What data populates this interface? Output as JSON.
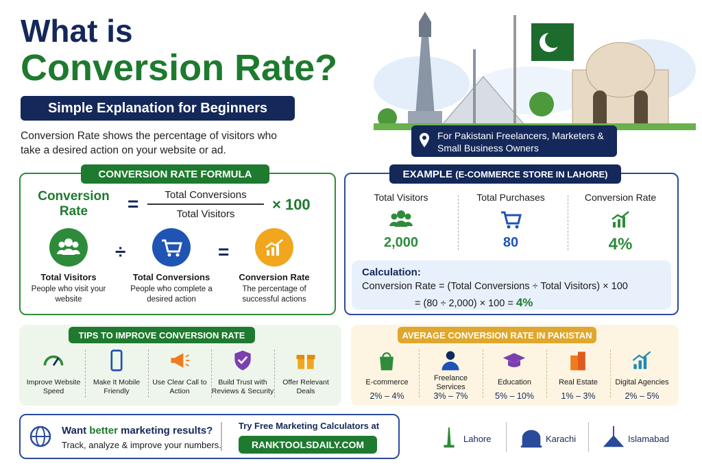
{
  "header": {
    "title_line1": "What is",
    "title_line2": "Conversion Rate?",
    "subtitle": "Simple Explanation for Beginners",
    "description": "Conversion Rate shows the percentage of visitors who take a desired action on your website or ad.",
    "audience": "For Pakistani Freelancers, Marketers & Small Business Owners"
  },
  "formula": {
    "heading": "CONVERSION RATE FORMULA",
    "lhs": "Conversion Rate",
    "equals": "=",
    "numerator": "Total Conversions",
    "denominator": "Total Visitors",
    "multiplier": "× 100",
    "operators": [
      "÷",
      "="
    ],
    "items": [
      {
        "label": "Total Visitors",
        "desc": "People who visit your website"
      },
      {
        "label": "Total Conversions",
        "desc": "People who complete a desired action"
      },
      {
        "label": "Conversion Rate",
        "desc": "The percentage of successful actions"
      }
    ]
  },
  "example": {
    "heading": "EXAMPLE",
    "heading_note": "(E-COMMERCE STORE IN LAHORE)",
    "stats": [
      {
        "label": "Total Visitors",
        "value": "2,000"
      },
      {
        "label": "Total Purchases",
        "value": "80"
      },
      {
        "label": "Conversion Rate",
        "value": "4%"
      }
    ],
    "calculation": {
      "title": "Calculation:",
      "line1": "Conversion Rate = (Total Conversions ÷ Total Visitors) × 100",
      "line2": "= (80 ÷ 2,000) × 100 =",
      "result": "4%"
    }
  },
  "tips": {
    "heading": "TIPS TO IMPROVE CONVERSION RATE",
    "items": [
      "Improve Website Speed",
      "Make It Mobile Friendly",
      "Use Clear Call to Action",
      "Build Trust with Reviews & Security",
      "Offer Relevant Deals"
    ]
  },
  "averages": {
    "heading": "AVERAGE CONVERSION RATE IN PAKISTAN",
    "items": [
      {
        "sector": "E-commerce",
        "range": "2% – 4%"
      },
      {
        "sector": "Freelance Services",
        "range": "3% – 7%"
      },
      {
        "sector": "Education",
        "range": "5% – 10%"
      },
      {
        "sector": "Real Estate",
        "range": "1% – 3%"
      },
      {
        "sector": "Digital Agencies",
        "range": "2% – 5%"
      }
    ]
  },
  "footer": {
    "cta_prefix": "Want",
    "cta_highlight": "better",
    "cta_suffix": "marketing results?",
    "cta_sub": "Track, analyze & improve your numbers.",
    "try_text": "Try Free Marketing Calculators at",
    "site": "RANKTOOLSDAILY.COM",
    "cities": [
      "Lahore",
      "Karachi",
      "Islamabad"
    ]
  }
}
